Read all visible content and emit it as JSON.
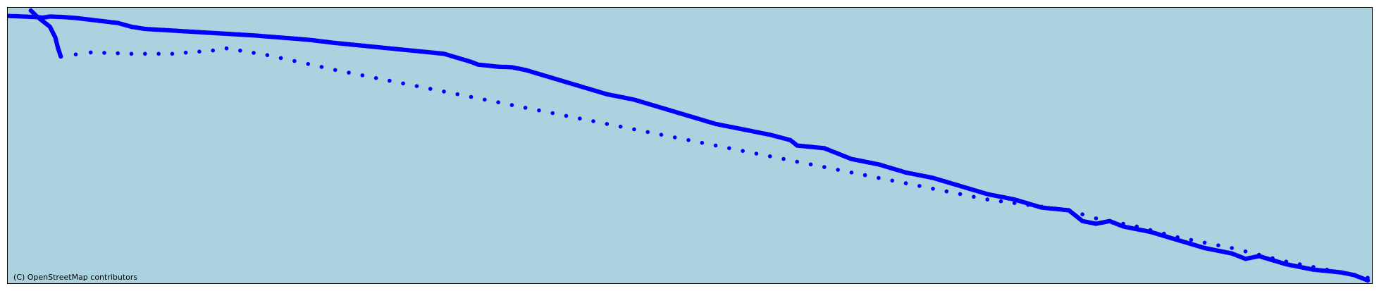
{
  "map": {
    "water_color": "#aad3df",
    "track_color": "#0000ff",
    "attribution": "(C) OpenStreetMap contributors"
  },
  "tracks": [
    {
      "name": "dense",
      "style": "dense",
      "points": [
        [
          0.0,
          0.02
        ],
        [
          0.01,
          0.022
        ],
        [
          0.02,
          0.024
        ],
        [
          0.025,
          0.026
        ],
        [
          0.03,
          0.022
        ],
        [
          0.04,
          0.024
        ],
        [
          0.05,
          0.028
        ],
        [
          0.06,
          0.034
        ],
        [
          0.07,
          0.04
        ],
        [
          0.08,
          0.046
        ],
        [
          0.09,
          0.06
        ],
        [
          0.095,
          0.064
        ],
        [
          0.1,
          0.068
        ],
        [
          0.12,
          0.074
        ],
        [
          0.14,
          0.08
        ],
        [
          0.16,
          0.086
        ],
        [
          0.18,
          0.092
        ],
        [
          0.2,
          0.1
        ],
        [
          0.22,
          0.108
        ],
        [
          0.24,
          0.12
        ],
        [
          0.26,
          0.13
        ],
        [
          0.28,
          0.14
        ],
        [
          0.3,
          0.15
        ],
        [
          0.32,
          0.16
        ],
        [
          0.34,
          0.19
        ],
        [
          0.345,
          0.2
        ],
        [
          0.36,
          0.208
        ],
        [
          0.37,
          0.21
        ],
        [
          0.38,
          0.22
        ],
        [
          0.4,
          0.25
        ],
        [
          0.42,
          0.28
        ],
        [
          0.44,
          0.31
        ],
        [
          0.46,
          0.33
        ],
        [
          0.48,
          0.36
        ],
        [
          0.5,
          0.39
        ],
        [
          0.52,
          0.42
        ],
        [
          0.54,
          0.44
        ],
        [
          0.56,
          0.46
        ],
        [
          0.575,
          0.48
        ],
        [
          0.58,
          0.5
        ],
        [
          0.6,
          0.51
        ],
        [
          0.61,
          0.53
        ],
        [
          0.62,
          0.55
        ],
        [
          0.64,
          0.57
        ],
        [
          0.66,
          0.6
        ],
        [
          0.68,
          0.62
        ],
        [
          0.7,
          0.65
        ],
        [
          0.72,
          0.68
        ],
        [
          0.74,
          0.7
        ],
        [
          0.76,
          0.73
        ],
        [
          0.78,
          0.74
        ],
        [
          0.785,
          0.76
        ],
        [
          0.79,
          0.78
        ],
        [
          0.8,
          0.79
        ],
        [
          0.81,
          0.78
        ],
        [
          0.82,
          0.8
        ],
        [
          0.84,
          0.82
        ],
        [
          0.86,
          0.85
        ],
        [
          0.88,
          0.88
        ],
        [
          0.9,
          0.9
        ],
        [
          0.91,
          0.92
        ],
        [
          0.92,
          0.91
        ],
        [
          0.94,
          0.94
        ],
        [
          0.96,
          0.96
        ],
        [
          0.98,
          0.97
        ],
        [
          0.99,
          0.98
        ],
        [
          1.0,
          1.0
        ]
      ]
    },
    {
      "name": "branch",
      "style": "dense",
      "points": [
        [
          0.016,
          0.0
        ],
        [
          0.02,
          0.02
        ],
        [
          0.03,
          0.06
        ],
        [
          0.034,
          0.1
        ],
        [
          0.036,
          0.14
        ],
        [
          0.038,
          0.17
        ]
      ]
    },
    {
      "name": "sparse",
      "style": "sparse",
      "points": [
        [
          0.038,
          0.17
        ],
        [
          0.06,
          0.155
        ],
        [
          0.09,
          0.16
        ],
        [
          0.12,
          0.16
        ],
        [
          0.15,
          0.148
        ],
        [
          0.16,
          0.14
        ],
        [
          0.19,
          0.165
        ],
        [
          0.24,
          0.22
        ],
        [
          0.3,
          0.28
        ],
        [
          0.36,
          0.34
        ],
        [
          0.42,
          0.4
        ],
        [
          0.48,
          0.46
        ],
        [
          0.54,
          0.52
        ],
        [
          0.6,
          0.58
        ],
        [
          0.66,
          0.64
        ],
        [
          0.72,
          0.7
        ],
        [
          0.78,
          0.74
        ],
        [
          0.8,
          0.77
        ],
        [
          0.83,
          0.8
        ],
        [
          0.86,
          0.84
        ],
        [
          0.9,
          0.88
        ],
        [
          0.94,
          0.93
        ],
        [
          0.98,
          0.97
        ],
        [
          1.0,
          0.99
        ]
      ]
    }
  ]
}
